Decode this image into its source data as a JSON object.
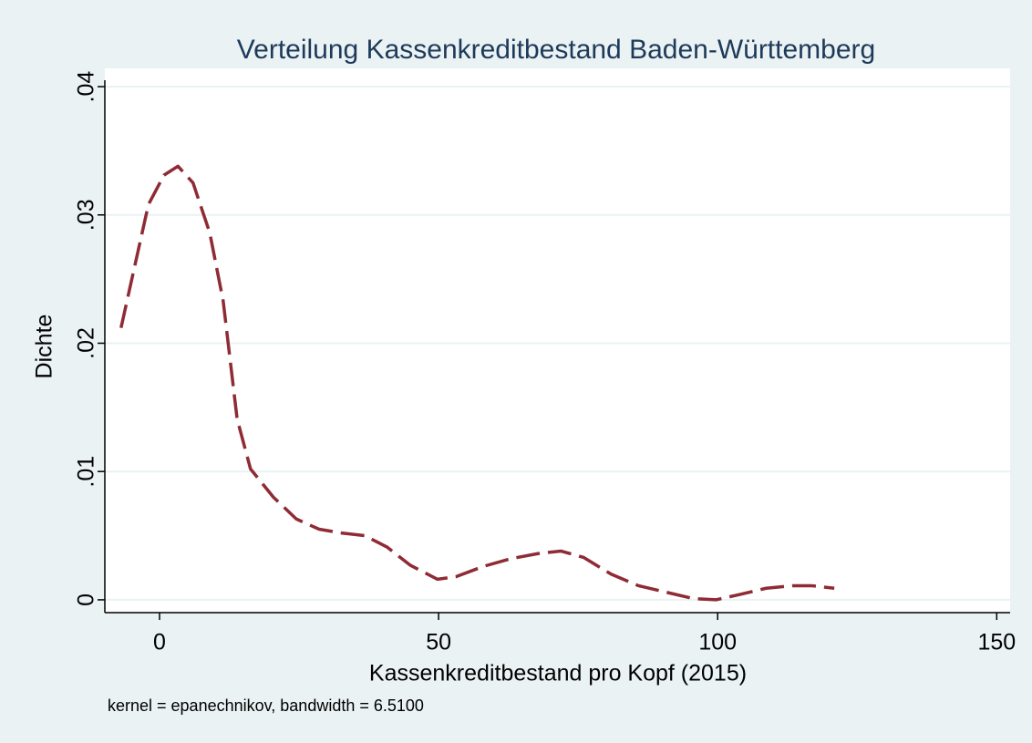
{
  "chart_data": {
    "type": "line",
    "title": "Verteilung Kassenkreditbestand Baden-Württemberg",
    "xlabel": "Kassenkreditbestand pro Kopf (2015)",
    "ylabel": "Dichte",
    "note": "kernel = epanechnikov, bandwidth = 6.5100",
    "x": [
      -6.9,
      -2,
      0.8,
      3.3,
      6,
      9,
      11.4,
      13.9,
      16.3,
      20.4,
      24.5,
      28.6,
      32.7,
      36.8,
      40.8,
      44.9,
      49.8,
      53.1,
      58,
      62.9,
      67.8,
      71.9,
      76,
      80.9,
      85.8,
      90.7,
      95.6,
      99.7,
      103.8,
      108.7,
      113.6,
      116.8,
      120.9
    ],
    "series": [
      {
        "name": "Dichte",
        "color": "#8f2b34",
        "values": [
          0.0212,
          0.0308,
          0.0331,
          0.0338,
          0.0325,
          0.0286,
          0.0233,
          0.0141,
          0.0102,
          0.008,
          0.0063,
          0.0055,
          0.0052,
          0.005,
          0.0041,
          0.0027,
          0.0016,
          0.0018,
          0.0026,
          0.0032,
          0.0036,
          0.0038,
          0.0033,
          0.002,
          0.0011,
          0.0006,
          0.0001,
          0,
          0.0004,
          0.0009,
          0.0011,
          0.0011,
          0.0009
        ]
      }
    ],
    "xlim": [
      -9.8,
      152.4
    ],
    "xticks": [
      0,
      50,
      100,
      150
    ],
    "ylim": [
      -0.001,
      0.0405
    ],
    "yticks": [
      0,
      {
        "value": 0.01,
        "label": ".01"
      },
      {
        "value": 0.02,
        "label": ".02"
      },
      {
        "value": 0.03,
        "label": ".03"
      },
      {
        "value": 0.04,
        "label": ".04"
      }
    ],
    "grid": true
  }
}
